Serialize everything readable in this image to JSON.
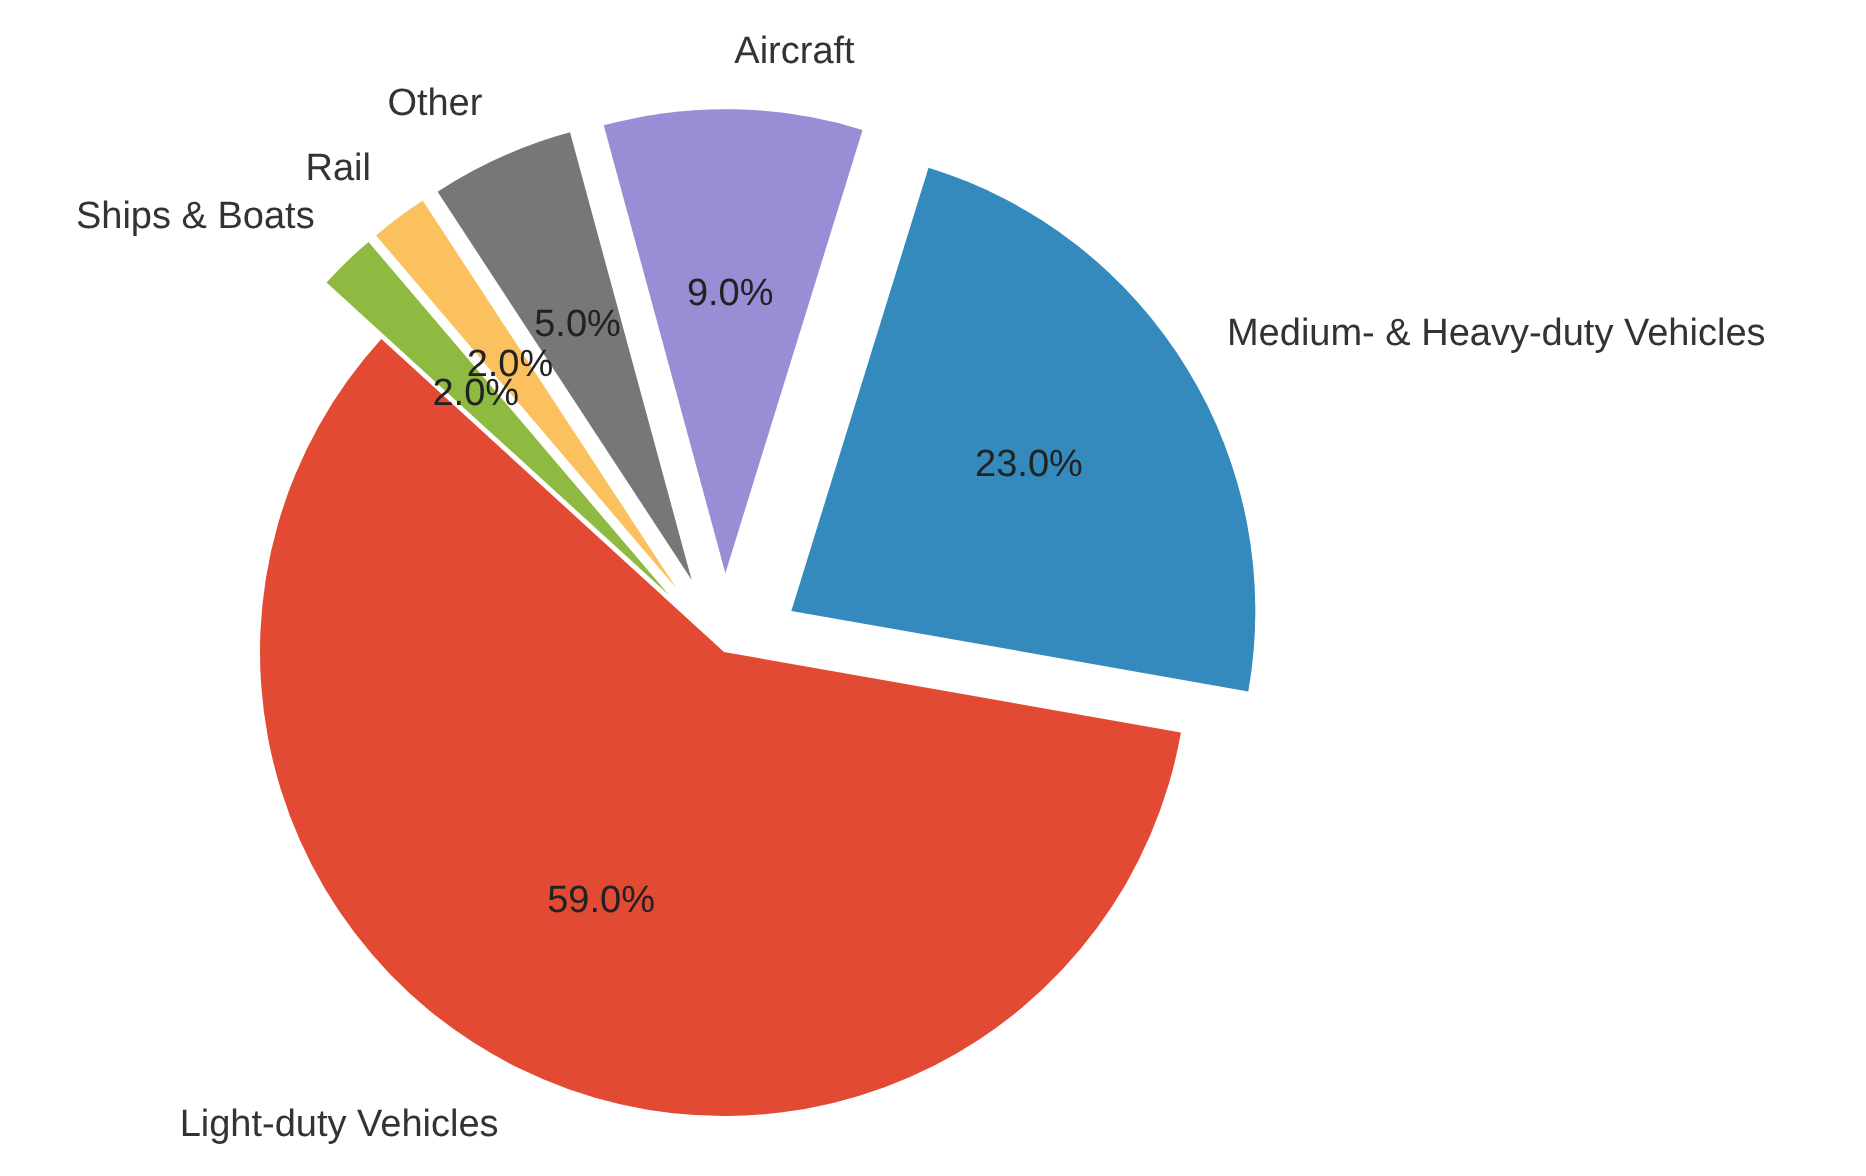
{
  "chart_data": {
    "type": "pie",
    "categories": [
      "Light-duty Vehicles",
      "Ships & Boats",
      "Rail",
      "Other",
      "Aircraft",
      "Medium- & Heavy-duty Vehicles"
    ],
    "values": [
      59,
      2,
      2,
      5,
      9,
      23
    ],
    "colors": [
      "#e24a33",
      "#8eba42",
      "#fbc15e",
      "#777777",
      "#988ed5",
      "#348abd"
    ],
    "value_labels": [
      "59.0%",
      "2.0%",
      "2.0%",
      "5.0%",
      "9.0%",
      "23.0%"
    ]
  }
}
